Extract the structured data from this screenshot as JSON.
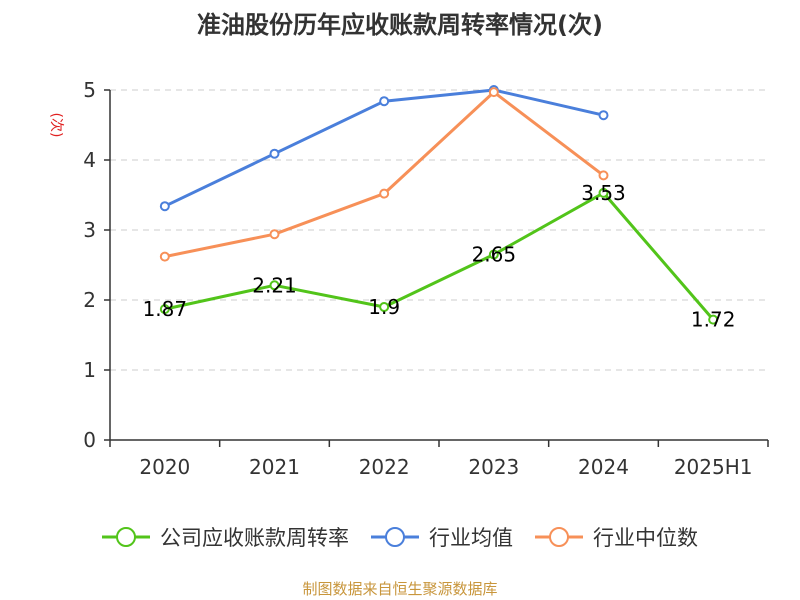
{
  "chart_data": {
    "type": "line",
    "title": "准油股份历年应收账款周转率情况(次)",
    "ylabel": "(次)",
    "xlabel": "",
    "categories": [
      "2020",
      "2021",
      "2022",
      "2023",
      "2024",
      "2025H1"
    ],
    "yticks": [
      "0",
      "1",
      "2",
      "3",
      "4",
      "5"
    ],
    "ylim": [
      0,
      5
    ],
    "grid": true,
    "legend_position": "bottom",
    "series": [
      {
        "name": "公司应收账款周转率",
        "color": "#52c41a",
        "values": [
          1.87,
          2.21,
          1.9,
          2.65,
          3.53,
          1.72
        ],
        "labels": [
          "1.87",
          "2.21",
          "1.9",
          "2.65",
          "3.53",
          "1.72"
        ]
      },
      {
        "name": "行业均值",
        "color": "#4a7fdb",
        "values": [
          3.34,
          4.09,
          4.84,
          5.0,
          4.64,
          null
        ]
      },
      {
        "name": "行业中位数",
        "color": "#f79058",
        "values": [
          2.62,
          2.94,
          3.52,
          4.97,
          3.78,
          null
        ]
      }
    ],
    "source": "制图数据来自恒生聚源数据库",
    "ylabel_color": "#e02020",
    "source_color": "#c8963c"
  }
}
